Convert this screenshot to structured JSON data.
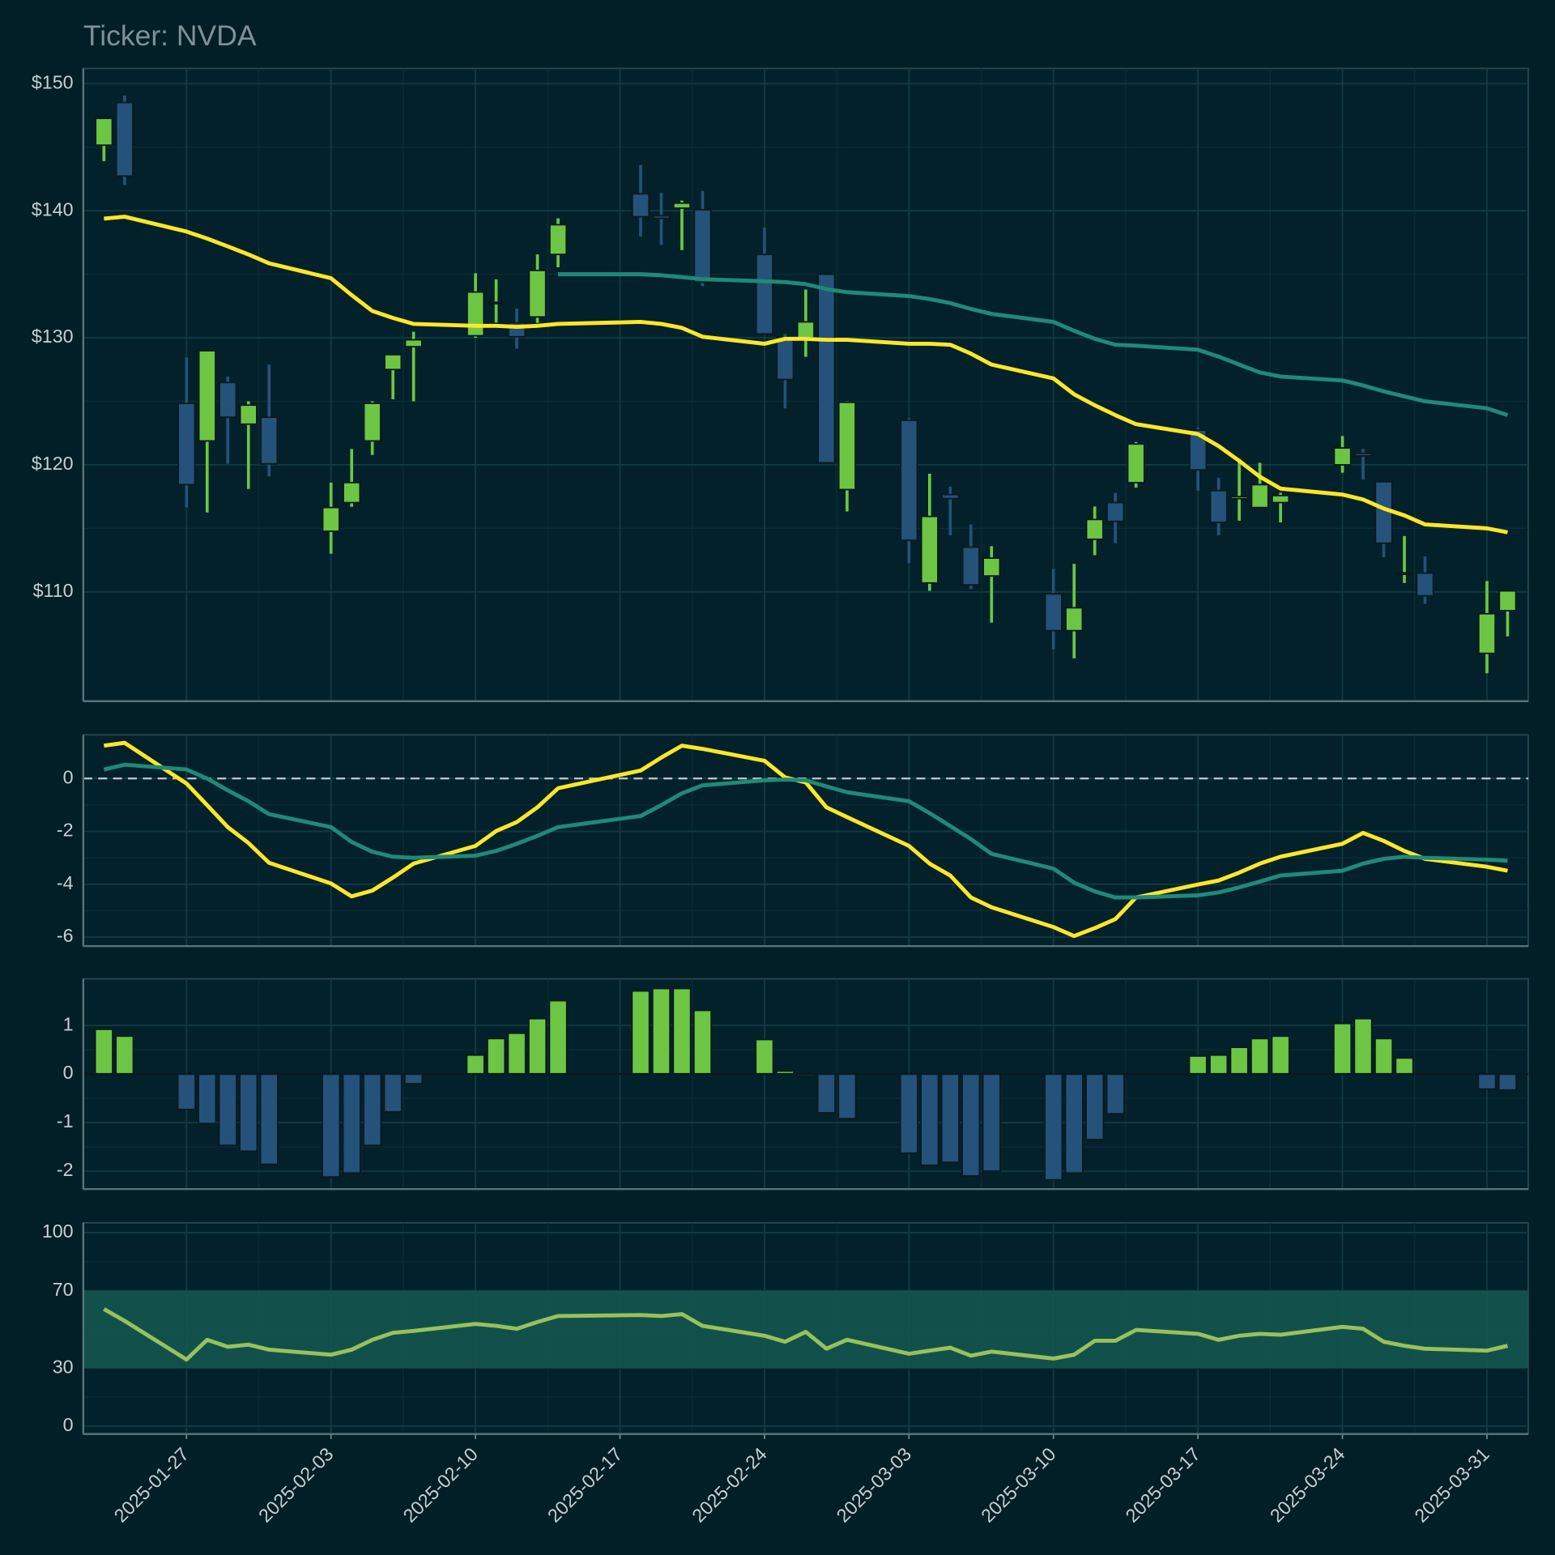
{
  "chart_data": [
    {
      "type": "candlestick",
      "title": "Ticker: NVDA",
      "x": [
        "2025-01-23",
        "2025-01-24",
        "2025-01-27",
        "2025-01-28",
        "2025-01-29",
        "2025-01-30",
        "2025-01-31",
        "2025-02-03",
        "2025-02-04",
        "2025-02-05",
        "2025-02-06",
        "2025-02-07",
        "2025-02-10",
        "2025-02-11",
        "2025-02-12",
        "2025-02-13",
        "2025-02-14",
        "2025-02-18",
        "2025-02-19",
        "2025-02-20",
        "2025-02-21",
        "2025-02-24",
        "2025-02-25",
        "2025-02-26",
        "2025-02-27",
        "2025-02-28",
        "2025-03-03",
        "2025-03-04",
        "2025-03-05",
        "2025-03-06",
        "2025-03-07",
        "2025-03-10",
        "2025-03-11",
        "2025-03-12",
        "2025-03-13",
        "2025-03-14",
        "2025-03-17",
        "2025-03-18",
        "2025-03-19",
        "2025-03-20",
        "2025-03-21",
        "2025-03-24",
        "2025-03-25",
        "2025-03-26",
        "2025-03-27",
        "2025-03-28",
        "2025-03-31",
        "2025-04-01"
      ],
      "open": [
        145.16,
        148.52,
        124.84,
        121.88,
        126.48,
        123.2,
        123.75,
        114.77,
        117.03,
        121.88,
        127.5,
        129.3,
        130.16,
        132.7,
        131.17,
        131.64,
        136.56,
        141.33,
        139.6,
        140.2,
        140.08,
        136.56,
        130.0,
        130.0,
        135.0,
        118.05,
        123.5,
        110.7,
        117.66,
        113.52,
        111.25,
        109.84,
        106.95,
        114.14,
        117.03,
        118.6,
        122.73,
        117.97,
        117.34,
        116.64,
        117.03,
        120.0,
        120.9,
        118.67,
        111.4,
        111.48,
        105.16,
        108.52
      ],
      "high": [
        147.3,
        149.06,
        128.44,
        129.0,
        126.95,
        125.0,
        127.9,
        118.6,
        121.25,
        125.0,
        128.7,
        130.47,
        135.08,
        134.6,
        132.3,
        136.56,
        139.4,
        143.6,
        141.4,
        140.8,
        141.56,
        138.67,
        130.3,
        133.8,
        135.0,
        125.0,
        123.67,
        119.3,
        118.28,
        115.31,
        113.6,
        111.8,
        112.2,
        116.72,
        117.8,
        121.8,
        122.9,
        118.98,
        120.47,
        120.16,
        117.8,
        122.27,
        121.25,
        118.67,
        114.4,
        112.8,
        110.86,
        110.1
      ],
      "low": [
        143.9,
        142.03,
        116.64,
        116.25,
        120.08,
        118.1,
        119.1,
        113.0,
        116.7,
        120.78,
        125.16,
        125.0,
        130.0,
        131.2,
        129.14,
        131.17,
        135.55,
        137.97,
        137.3,
        136.9,
        134.06,
        130.3,
        124.45,
        128.5,
        120.1,
        116.33,
        112.27,
        110.08,
        114.45,
        110.23,
        107.58,
        105.47,
        104.77,
        112.89,
        113.83,
        118.2,
        117.97,
        114.45,
        115.6,
        116.64,
        115.47,
        119.38,
        118.83,
        112.73,
        110.7,
        109.06,
        103.6,
        106.5
      ],
      "close": [
        147.27,
        142.73,
        118.44,
        128.98,
        123.75,
        124.7,
        120.08,
        116.64,
        118.6,
        124.84,
        128.67,
        129.84,
        133.6,
        132.8,
        130.08,
        135.3,
        138.9,
        139.53,
        139.4,
        140.6,
        134.38,
        130.3,
        126.72,
        131.25,
        120.16,
        124.92,
        114.06,
        115.94,
        117.34,
        110.55,
        112.66,
        106.95,
        108.75,
        115.7,
        115.55,
        121.64,
        119.6,
        115.47,
        117.5,
        118.44,
        117.58,
        121.33,
        120.7,
        113.83,
        111.5,
        109.69,
        108.28,
        110.08
      ],
      "up_color": "#6cc644",
      "down_color": "#24527a",
      "series": [
        {
          "color": "#ffe629",
          "values": [
            139.38,
            139.53,
            138.36,
            137.81,
            137.19,
            136.56,
            135.86,
            134.69,
            133.36,
            132.11,
            131.56,
            131.09,
            130.94,
            130.94,
            130.86,
            130.94,
            131.09,
            131.25,
            131.09,
            130.78,
            130.08,
            129.53,
            129.92,
            129.92,
            129.84,
            129.84,
            129.53,
            129.53,
            129.45,
            128.75,
            127.89,
            126.8,
            125.55,
            124.69,
            123.91,
            123.2,
            122.42,
            121.48,
            120.31,
            119.06,
            118.13,
            117.66,
            117.27,
            116.56,
            116.02,
            115.31,
            115.0,
            114.69
          ]
        },
        {
          "color": "#1f8a78",
          "values": [
            null,
            null,
            null,
            null,
            null,
            null,
            null,
            null,
            null,
            null,
            null,
            null,
            null,
            null,
            null,
            null,
            135.0,
            135.0,
            134.92,
            134.77,
            134.61,
            134.45,
            134.38,
            134.22,
            133.83,
            133.59,
            133.28,
            133.05,
            132.73,
            132.27,
            131.88,
            131.25,
            130.55,
            129.92,
            129.45,
            129.38,
            129.06,
            128.52,
            127.89,
            127.27,
            126.95,
            126.64,
            126.25,
            125.78,
            125.39,
            125.0,
            124.45,
            123.91
          ]
        }
      ],
      "xlim": [
        "2025-01-22",
        "2025-04-02"
      ],
      "xticks": [
        "2025-01-27",
        "2025-02-03",
        "2025-02-10",
        "2025-02-17",
        "2025-02-24",
        "2025-03-03",
        "2025-03-10",
        "2025-03-17",
        "2025-03-24",
        "2025-03-31"
      ],
      "ylim": [
        101.4,
        151.2
      ],
      "yticks": [
        {
          "value": 110,
          "label": "$110"
        },
        {
          "value": 120,
          "label": "$120"
        },
        {
          "value": 130,
          "label": "$130"
        },
        {
          "value": 140,
          "label": "$140"
        },
        {
          "value": 150,
          "label": "$150"
        }
      ],
      "grid": true
    },
    {
      "type": "line",
      "x": [
        "2025-01-23",
        "2025-01-24",
        "2025-01-27",
        "2025-01-28",
        "2025-01-29",
        "2025-01-30",
        "2025-01-31",
        "2025-02-03",
        "2025-02-04",
        "2025-02-05",
        "2025-02-06",
        "2025-02-07",
        "2025-02-10",
        "2025-02-11",
        "2025-02-12",
        "2025-02-13",
        "2025-02-14",
        "2025-02-18",
        "2025-02-19",
        "2025-02-20",
        "2025-02-21",
        "2025-02-24",
        "2025-02-25",
        "2025-02-26",
        "2025-02-27",
        "2025-02-28",
        "2025-03-03",
        "2025-03-04",
        "2025-03-05",
        "2025-03-06",
        "2025-03-07",
        "2025-03-10",
        "2025-03-11",
        "2025-03-12",
        "2025-03-13",
        "2025-03-14",
        "2025-03-17",
        "2025-03-18",
        "2025-03-19",
        "2025-03-20",
        "2025-03-21",
        "2025-03-24",
        "2025-03-25",
        "2025-03-26",
        "2025-03-27",
        "2025-03-28",
        "2025-03-31",
        "2025-04-01"
      ],
      "series": [
        {
          "color": "#ffe629",
          "values": [
            1.24,
            1.35,
            -0.19,
            -1.01,
            -1.84,
            -2.44,
            -3.19,
            -3.97,
            -4.46,
            -4.24,
            -3.75,
            -3.22,
            -2.55,
            -1.99,
            -1.65,
            -1.09,
            -0.37,
            0.3,
            0.79,
            1.24,
            1.12,
            0.67,
            0.04,
            -0.15,
            -1.09,
            -1.46,
            -2.55,
            -3.22,
            -3.67,
            -4.5,
            -4.87,
            -5.62,
            -5.96,
            -5.66,
            -5.32,
            -4.5,
            -4.01,
            -3.86,
            -3.56,
            -3.22,
            -2.96,
            -2.47,
            -2.06,
            -2.36,
            -2.74,
            -3.04,
            -3.34,
            -3.49
          ]
        },
        {
          "color": "#1f8a78",
          "values": [
            0.34,
            0.52,
            0.34,
            0,
            -0.45,
            -0.86,
            -1.35,
            -1.84,
            -2.4,
            -2.77,
            -2.96,
            -3.0,
            -2.92,
            -2.74,
            -2.47,
            -2.17,
            -1.84,
            -1.42,
            -1.01,
            -0.56,
            -0.26,
            -0.07,
            -0.04,
            -0.07,
            -0.3,
            -0.52,
            -0.86,
            -1.31,
            -1.8,
            -2.29,
            -2.85,
            -3.41,
            -3.94,
            -4.27,
            -4.5,
            -4.5,
            -4.42,
            -4.31,
            -4.12,
            -3.9,
            -3.67,
            -3.49,
            -3.22,
            -3.04,
            -2.96,
            -3.0,
            -3.07,
            -3.11
          ]
        }
      ],
      "hline": 0,
      "xlim": [
        "2025-01-22",
        "2025-04-02"
      ],
      "xticks": [
        "2025-01-27",
        "2025-02-03",
        "2025-02-10",
        "2025-02-17",
        "2025-02-24",
        "2025-03-03",
        "2025-03-10",
        "2025-03-17",
        "2025-03-24",
        "2025-03-31"
      ],
      "ylim": [
        -6.34,
        1.65
      ],
      "yticks": [
        -6,
        -4,
        -2,
        0
      ],
      "grid": true
    },
    {
      "type": "bar",
      "x": [
        "2025-01-23",
        "2025-01-24",
        "2025-01-27",
        "2025-01-28",
        "2025-01-29",
        "2025-01-30",
        "2025-01-31",
        "2025-02-03",
        "2025-02-04",
        "2025-02-05",
        "2025-02-06",
        "2025-02-07",
        "2025-02-10",
        "2025-02-11",
        "2025-02-12",
        "2025-02-13",
        "2025-02-14",
        "2025-02-18",
        "2025-02-19",
        "2025-02-20",
        "2025-02-21",
        "2025-02-24",
        "2025-02-25",
        "2025-02-26",
        "2025-02-27",
        "2025-02-28",
        "2025-03-03",
        "2025-03-04",
        "2025-03-05",
        "2025-03-06",
        "2025-03-07",
        "2025-03-10",
        "2025-03-11",
        "2025-03-12",
        "2025-03-13",
        "2025-03-14",
        "2025-03-17",
        "2025-03-18",
        "2025-03-19",
        "2025-03-20",
        "2025-03-21",
        "2025-03-24",
        "2025-03-25",
        "2025-03-26",
        "2025-03-27",
        "2025-03-28",
        "2025-03-31",
        "2025-04-01"
      ],
      "values": [
        0.92,
        0.78,
        -0.73,
        -1.02,
        -1.47,
        -1.59,
        -1.86,
        -2.12,
        -2.04,
        -1.47,
        -0.78,
        -0.2,
        0.39,
        0.73,
        0.84,
        1.14,
        1.51,
        1.71,
        1.76,
        1.76,
        1.31,
        0.71,
        0.06,
        -0.04,
        -0.8,
        -0.92,
        -1.63,
        -1.88,
        -1.82,
        -2.1,
        -2.0,
        -2.18,
        -2.04,
        -1.35,
        -0.82,
        -0.02,
        0.37,
        0.39,
        0.55,
        0.73,
        0.78,
        1.04,
        1.14,
        0.73,
        0.33,
        -0.02,
        -0.31,
        -0.33
      ],
      "up_color": "#6cc644",
      "down_color": "#24527a",
      "xlim": [
        "2025-01-22",
        "2025-04-02"
      ],
      "xticks": [
        "2025-01-27",
        "2025-02-03",
        "2025-02-10",
        "2025-02-17",
        "2025-02-24",
        "2025-03-03",
        "2025-03-10",
        "2025-03-17",
        "2025-03-24",
        "2025-03-31"
      ],
      "ylim": [
        -2.37,
        1.96
      ],
      "yticks": [
        -2,
        -1,
        0,
        1
      ],
      "grid": true
    },
    {
      "type": "line",
      "x": [
        "2025-01-23",
        "2025-01-24",
        "2025-01-27",
        "2025-01-28",
        "2025-01-29",
        "2025-01-30",
        "2025-01-31",
        "2025-02-03",
        "2025-02-04",
        "2025-02-05",
        "2025-02-06",
        "2025-02-07",
        "2025-02-10",
        "2025-02-11",
        "2025-02-12",
        "2025-02-13",
        "2025-02-14",
        "2025-02-18",
        "2025-02-19",
        "2025-02-20",
        "2025-02-21",
        "2025-02-24",
        "2025-02-25",
        "2025-02-26",
        "2025-02-27",
        "2025-02-28",
        "2025-03-03",
        "2025-03-04",
        "2025-03-05",
        "2025-03-06",
        "2025-03-07",
        "2025-03-10",
        "2025-03-11",
        "2025-03-12",
        "2025-03-13",
        "2025-03-14",
        "2025-03-17",
        "2025-03-18",
        "2025-03-19",
        "2025-03-20",
        "2025-03-21",
        "2025-03-24",
        "2025-03-25",
        "2025-03-26",
        "2025-03-27",
        "2025-03-28",
        "2025-03-31",
        "2025-04-01"
      ],
      "series": [
        {
          "color": "#97c25a",
          "values": [
            60.5,
            54.4,
            34.4,
            44.6,
            41.0,
            42.1,
            39.5,
            36.9,
            39.5,
            44.6,
            48.2,
            49.2,
            52.8,
            51.8,
            50.3,
            53.8,
            56.9,
            57.4,
            56.9,
            57.9,
            51.8,
            46.7,
            43.6,
            48.7,
            40.0,
            44.6,
            37.4,
            39.0,
            40.5,
            36.4,
            38.5,
            34.9,
            36.9,
            44.1,
            44.1,
            49.7,
            47.7,
            44.6,
            46.7,
            47.7,
            47.2,
            51.3,
            50.3,
            43.6,
            41.5,
            40.0,
            39.0,
            41.5
          ]
        }
      ],
      "band": [
        30,
        70
      ],
      "band_color": "#14564f",
      "xlim": [
        "2025-01-22",
        "2025-04-02"
      ],
      "xticks": [
        "2025-01-27",
        "2025-02-03",
        "2025-02-10",
        "2025-02-17",
        "2025-02-24",
        "2025-03-03",
        "2025-03-10",
        "2025-03-17",
        "2025-03-24",
        "2025-03-31"
      ],
      "ylim": [
        -4.1,
        105.1
      ],
      "yticks": [
        0,
        30,
        70,
        100
      ],
      "grid": true
    }
  ]
}
